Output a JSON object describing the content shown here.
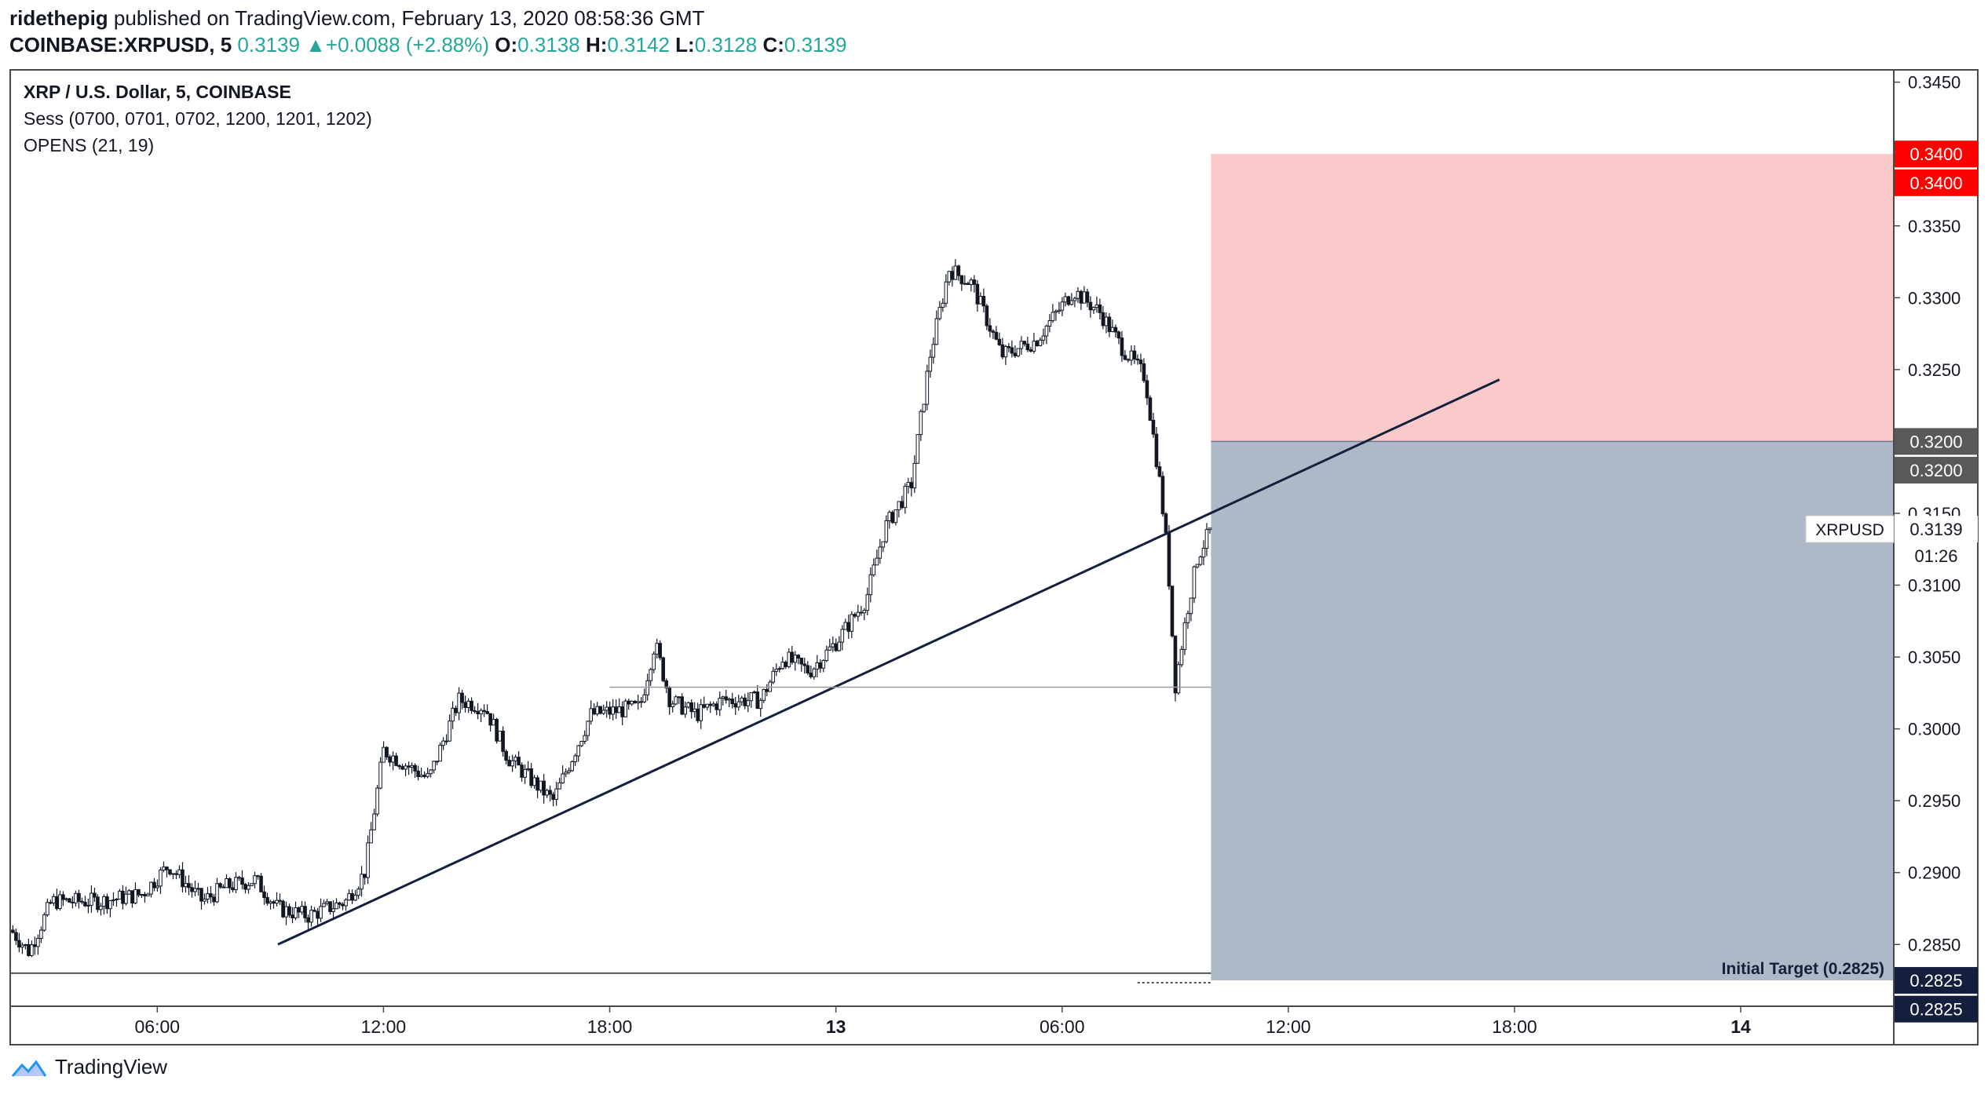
{
  "header": {
    "author": "ridethepig",
    "published_text": "published on TradingView.com, February 13, 2020 08:58:36 GMT",
    "symbol": "COINBASE:XRPUSD, 5",
    "price": "0.3139",
    "change_arrow": "▲",
    "change": "+0.0088 (+2.88%)",
    "open_label": "O:",
    "open": "0.3138",
    "high_label": "H:",
    "high": "0.3142",
    "low_label": "L:",
    "low": "0.3128",
    "close_label": "C:",
    "close": "0.3139"
  },
  "legend": {
    "title": "XRP / U.S. Dollar, 5, COINBASE",
    "sess": "Sess (0700, 0701, 0702, 1200, 1201, 1202)",
    "opens": "OPENS (21, 19)"
  },
  "footer": {
    "brand": "TradingView"
  },
  "colors": {
    "up": "#26a69a",
    "risk_zone": "#f8b4b4",
    "reward_zone": "#8c9bb0",
    "red_label": "#ff0000",
    "grey_label": "#595959",
    "navy_label": "#131f3c",
    "trendline": "#131f3c"
  },
  "chart_data": {
    "type": "candlestick",
    "title": "XRP / U.S. Dollar, 5, COINBASE",
    "xlabel": "",
    "ylabel": "",
    "ylim": [
      0.2807,
      0.3458
    ],
    "y_ticks": [
      "0.3450",
      "0.3350",
      "0.3300",
      "0.3250",
      "0.3150",
      "0.3100",
      "0.3050",
      "0.3000",
      "0.2950",
      "0.2900",
      "0.2850"
    ],
    "y_tick_values": [
      0.345,
      0.335,
      0.33,
      0.325,
      0.315,
      0.31,
      0.305,
      0.3,
      0.295,
      0.29,
      0.285
    ],
    "x_ticks": [
      "06:00",
      "12:00",
      "18:00",
      "13",
      "06:00",
      "12:00",
      "18:00",
      "14"
    ],
    "x_tick_hours": [
      6,
      12,
      18,
      24,
      30,
      36,
      42,
      48
    ],
    "x_range_hours": [
      2.12,
      52.06
    ],
    "price_path": [
      [
        2.12,
        0.286
      ],
      [
        2.6,
        0.2845
      ],
      [
        3.2,
        0.288
      ],
      [
        4.5,
        0.288
      ],
      [
        5.6,
        0.2885
      ],
      [
        6.3,
        0.2905
      ],
      [
        7.2,
        0.288
      ],
      [
        7.8,
        0.289
      ],
      [
        8.6,
        0.2895
      ],
      [
        9.2,
        0.2875
      ],
      [
        10.0,
        0.287
      ],
      [
        11.0,
        0.288
      ],
      [
        11.5,
        0.29
      ],
      [
        12.0,
        0.2985
      ],
      [
        13.2,
        0.2965
      ],
      [
        14.0,
        0.302
      ],
      [
        14.7,
        0.3015
      ],
      [
        15.3,
        0.298
      ],
      [
        16.5,
        0.295
      ],
      [
        17.5,
        0.301
      ],
      [
        18.8,
        0.3015
      ],
      [
        19.2,
        0.306
      ],
      [
        19.6,
        0.302
      ],
      [
        20.3,
        0.301
      ],
      [
        21.0,
        0.302
      ],
      [
        22.0,
        0.302
      ],
      [
        22.6,
        0.305
      ],
      [
        23.3,
        0.304
      ],
      [
        24.0,
        0.306
      ],
      [
        24.8,
        0.309
      ],
      [
        25.3,
        0.314
      ],
      [
        26.0,
        0.317
      ],
      [
        26.5,
        0.326
      ],
      [
        27.0,
        0.332
      ],
      [
        27.6,
        0.331
      ],
      [
        28.4,
        0.326
      ],
      [
        29.3,
        0.327
      ],
      [
        30.3,
        0.3305
      ],
      [
        31.0,
        0.329
      ],
      [
        31.6,
        0.3265
      ],
      [
        32.2,
        0.3245
      ],
      [
        32.6,
        0.317
      ],
      [
        32.8,
        0.312
      ],
      [
        33.0,
        0.303
      ],
      [
        33.3,
        0.308
      ],
      [
        33.6,
        0.312
      ],
      [
        33.95,
        0.3139
      ]
    ],
    "series": [
      {
        "name": "Trendline",
        "points": [
          [
            9.2,
            0.285
          ],
          [
            41.6,
            0.3243
          ]
        ]
      },
      {
        "name": "Support level",
        "points": [
          [
            2.12,
            0.283
          ],
          [
            33.95,
            0.283
          ]
        ]
      },
      {
        "name": "Horizontal level",
        "points": [
          [
            18.0,
            0.3029
          ],
          [
            33.95,
            0.3029
          ]
        ]
      }
    ],
    "zones": [
      {
        "name": "Stop zone",
        "from_hour": 33.95,
        "to_hour": 52.06,
        "low": 0.32,
        "high": 0.34
      },
      {
        "name": "Target zone",
        "from_hour": 33.95,
        "to_hour": 52.06,
        "low": 0.2825,
        "high": 0.32
      }
    ],
    "annotations": [
      {
        "text": "Initial Target (0.2825)",
        "price": 0.2825
      }
    ],
    "price_labels": [
      {
        "text": "0.3400",
        "price": 0.34,
        "style": "red"
      },
      {
        "text": "0.3400",
        "price": 0.338,
        "style": "red"
      },
      {
        "text": "0.3200",
        "price": 0.32,
        "style": "grey"
      },
      {
        "text": "0.3200",
        "price": 0.318,
        "style": "grey"
      },
      {
        "text": "0.2825",
        "price": 0.2825,
        "style": "navy"
      },
      {
        "text": "0.2825",
        "price": 0.2805,
        "style": "navy"
      }
    ],
    "last_price": {
      "symbol": "XRPUSD",
      "value": "0.3139",
      "price": 0.3139,
      "countdown": "01:26"
    }
  }
}
